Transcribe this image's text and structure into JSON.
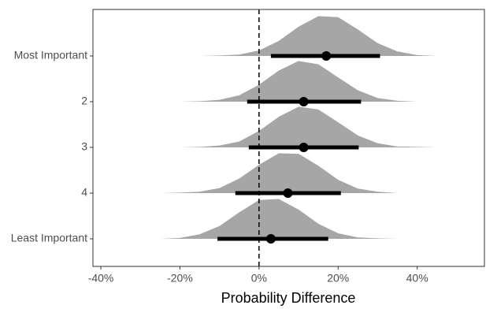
{
  "chart_data": {
    "type": "halfeye",
    "x_label": "Probability Difference",
    "categories": [
      "Most Important",
      "2",
      "3",
      "4",
      "Least Important"
    ],
    "medians": [
      17,
      11.3,
      11.3,
      7.3,
      3
    ],
    "lower": [
      3,
      -3,
      -2.6,
      -6,
      -10.5
    ],
    "upper": [
      30.6,
      25.8,
      25.2,
      20.7,
      17.5
    ],
    "density_x": [
      -30,
      -25,
      -20,
      -15,
      -10,
      -5,
      0,
      5,
      10,
      15,
      20,
      25,
      30,
      35,
      40,
      45
    ],
    "density": [
      [
        0,
        0,
        0,
        0,
        0.01,
        0.03,
        0.12,
        0.33,
        0.64,
        0.87,
        0.85,
        0.58,
        0.28,
        0.1,
        0.02,
        0
      ],
      [
        0,
        0,
        0,
        0.01,
        0.04,
        0.14,
        0.37,
        0.68,
        0.89,
        0.82,
        0.53,
        0.25,
        0.08,
        0.02,
        0,
        0
      ],
      [
        0,
        0,
        0,
        0.01,
        0.04,
        0.13,
        0.36,
        0.67,
        0.89,
        0.83,
        0.55,
        0.26,
        0.09,
        0.02,
        0.01,
        0
      ],
      [
        0,
        0,
        0.01,
        0.03,
        0.11,
        0.32,
        0.62,
        0.87,
        0.86,
        0.6,
        0.29,
        0.1,
        0.03,
        0,
        0,
        0
      ],
      [
        0,
        0,
        0.02,
        0.1,
        0.28,
        0.58,
        0.85,
        0.87,
        0.64,
        0.33,
        0.12,
        0.03,
        0.01,
        0,
        0,
        0
      ]
    ],
    "fill_color": "#a6a6a6",
    "point_color": "#000000",
    "reference_line": 0,
    "xlim": [
      -42,
      57
    ],
    "xticks": [
      {
        "value": -40,
        "label": "-40%"
      },
      {
        "value": -20,
        "label": "-20%"
      },
      {
        "value": 0,
        "label": "0%"
      },
      {
        "value": 20,
        "label": "20%"
      },
      {
        "value": 40,
        "label": "40%"
      }
    ]
  }
}
